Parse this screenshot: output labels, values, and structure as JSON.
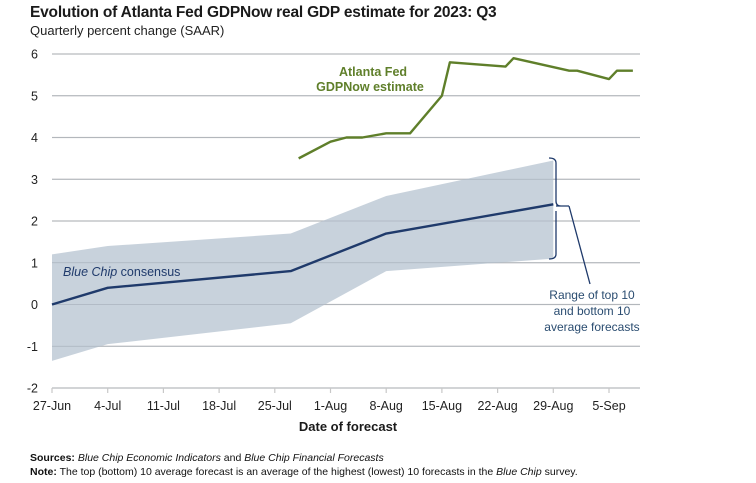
{
  "chart_data": {
    "type": "line",
    "title": "Evolution of Atlanta Fed GDPNow real GDP estimate for 2023: Q3",
    "subtitle": "Quarterly percent change (SAAR)",
    "xlabel": "Date of forecast",
    "ylabel": "",
    "ylim": [
      -2,
      6
    ],
    "yticks": [
      -2,
      -1,
      0,
      1,
      2,
      3,
      4,
      5,
      6
    ],
    "xlim_days": [
      0,
      75
    ],
    "x_origin": "27-Jun",
    "xticks": [
      {
        "day": 0,
        "label": "27-Jun"
      },
      {
        "day": 7,
        "label": "4-Jul"
      },
      {
        "day": 14,
        "label": "11-Jul"
      },
      {
        "day": 21,
        "label": "18-Jul"
      },
      {
        "day": 28,
        "label": "25-Jul"
      },
      {
        "day": 35,
        "label": "1-Aug"
      },
      {
        "day": 42,
        "label": "8-Aug"
      },
      {
        "day": 49,
        "label": "15-Aug"
      },
      {
        "day": 56,
        "label": "22-Aug"
      },
      {
        "day": 63,
        "label": "29-Aug"
      },
      {
        "day": 70,
        "label": "5-Sep"
      }
    ],
    "grid": true,
    "series": [
      {
        "name": "Atlanta Fed GDPNow estimate",
        "color": "#5f7f2a",
        "points": [
          {
            "day": 31,
            "date": "28-Jul",
            "value": 3.5
          },
          {
            "day": 35,
            "date": "1-Aug",
            "value": 3.9
          },
          {
            "day": 37,
            "date": "3-Aug",
            "value": 4.0
          },
          {
            "day": 39,
            "date": "5-Aug",
            "value": 4.0
          },
          {
            "day": 42,
            "date": "8-Aug",
            "value": 4.1
          },
          {
            "day": 45,
            "date": "11-Aug",
            "value": 4.1
          },
          {
            "day": 49,
            "date": "15-Aug",
            "value": 5.0
          },
          {
            "day": 50,
            "date": "16-Aug",
            "value": 5.8
          },
          {
            "day": 57,
            "date": "23-Aug",
            "value": 5.7
          },
          {
            "day": 58,
            "date": "24-Aug",
            "value": 5.9
          },
          {
            "day": 65,
            "date": "31-Aug",
            "value": 5.6
          },
          {
            "day": 66,
            "date": "1-Sep",
            "value": 5.6
          },
          {
            "day": 70,
            "date": "5-Sep",
            "value": 5.4
          },
          {
            "day": 71,
            "date": "6-Sep",
            "value": 5.6
          },
          {
            "day": 73,
            "date": "8-Sep",
            "value": 5.6
          }
        ]
      },
      {
        "name": "Blue Chip consensus",
        "color": "#1f3a6b",
        "points": [
          {
            "day": 0,
            "date": "27-Jun",
            "value": 0.0
          },
          {
            "day": 7,
            "date": "4-Jul",
            "value": 0.4
          },
          {
            "day": 30,
            "date": "27-Jul",
            "value": 0.8
          },
          {
            "day": 42,
            "date": "8-Aug",
            "value": 1.7
          },
          {
            "day": 63,
            "date": "29-Aug",
            "value": 2.4
          }
        ]
      }
    ],
    "band": {
      "name": "Range of top 10 and bottom 10 average forecasts",
      "color": "#c5d0da",
      "days": [
        0,
        7,
        30,
        42,
        63
      ],
      "upper": [
        1.2,
        1.4,
        1.7,
        2.6,
        3.45
      ],
      "lower": [
        -1.35,
        -0.95,
        -0.45,
        0.8,
        1.1
      ]
    },
    "annotations": {
      "gdpnow_line1": "Atlanta Fed",
      "gdpnow_line2": "GDPNow estimate",
      "bluechip_italic": "Blue Chip",
      "bluechip_rest": " consensus",
      "range_line1": "Range of top 10",
      "range_line2": "and bottom 10",
      "range_line3": "average forecasts"
    },
    "legend": "none (inline annotations)"
  },
  "footer": {
    "sources_label": "Sources:",
    "sources_italic1": "Blue Chip Economic Indicators",
    "sources_and": " and ",
    "sources_italic2": "Blue Chip Financial Forecasts",
    "note_label": "Note:",
    "note_text1": " The top (bottom) 10 average forecast is an average of the highest (lowest) 10 forecasts in the ",
    "note_italic": "Blue Chip",
    "note_text2": " survey."
  }
}
